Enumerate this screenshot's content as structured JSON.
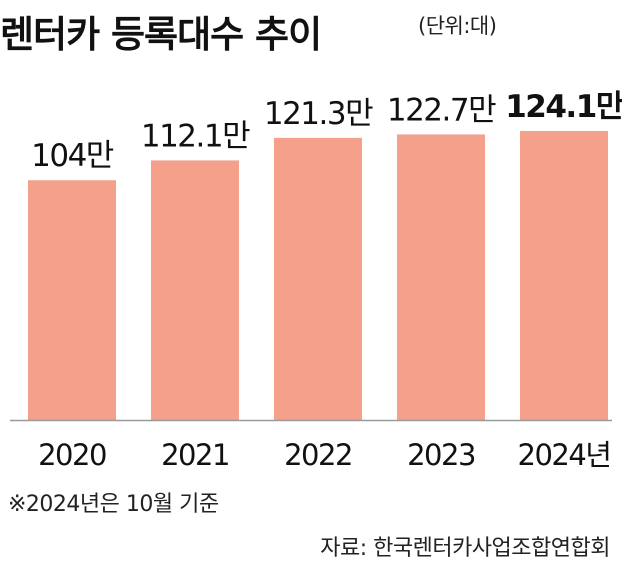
{
  "title": "렌터카 등록대수 추이",
  "unit_note": "(단위:대)",
  "footnote": "※2024년은 10월 기준",
  "source": "자료: 한국렌터카사업조합연합회",
  "colors": {
    "bar": "#f4a08b",
    "axis": "#9a9a9a",
    "text": "#111111"
  },
  "chart_data": {
    "type": "bar",
    "title": "렌터카 등록대수 추이",
    "xlabel": "",
    "ylabel": "",
    "unit": "만",
    "categories": [
      "2020",
      "2021",
      "2022",
      "2023",
      "2024년"
    ],
    "values": [
      104,
      112.1,
      121.3,
      122.7,
      124.1
    ],
    "value_labels": [
      "104만",
      "112.1만",
      "121.3만",
      "122.7만",
      "124.1만"
    ],
    "highlight_index": 4,
    "grid": false,
    "legend": "none"
  }
}
